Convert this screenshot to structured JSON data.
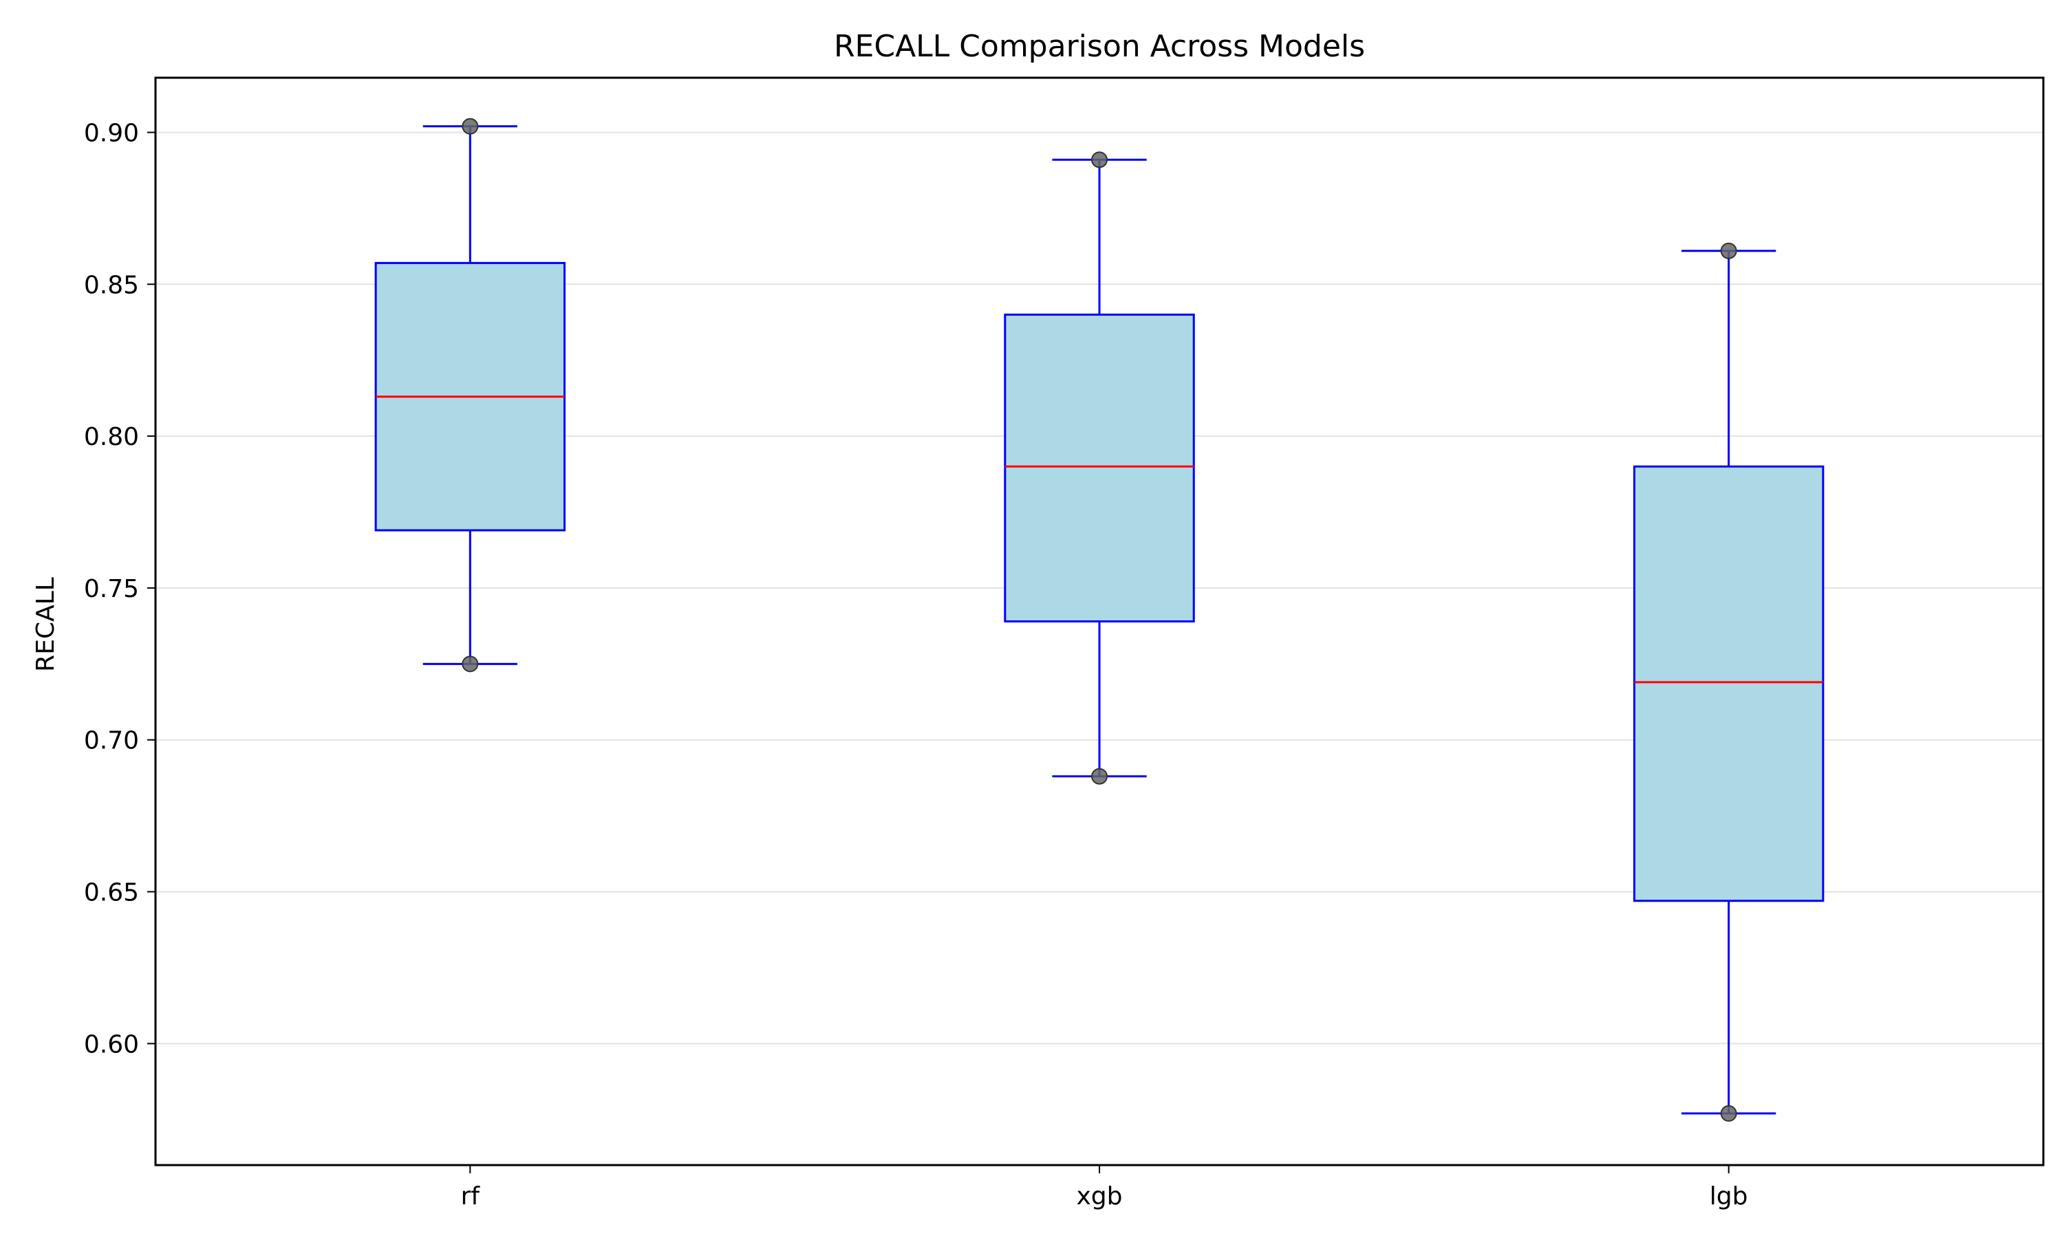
{
  "chart_data": {
    "type": "box",
    "title": "RECALL Comparison Across Models",
    "xlabel": "",
    "ylabel": "RECALL",
    "ylim": [
      0.56,
      0.918
    ],
    "yticks": [
      "0.60",
      "0.65",
      "0.70",
      "0.75",
      "0.80",
      "0.85",
      "0.90"
    ],
    "grid": "horizontal",
    "categories": [
      "rf",
      "xgb",
      "lgb"
    ],
    "boxes": [
      {
        "name": "rf",
        "whisker_low": 0.725,
        "q1": 0.769,
        "median": 0.813,
        "q3": 0.857,
        "whisker_high": 0.902
      },
      {
        "name": "xgb",
        "whisker_low": 0.688,
        "q1": 0.739,
        "median": 0.79,
        "q3": 0.84,
        "whisker_high": 0.891
      },
      {
        "name": "lgb",
        "whisker_low": 0.577,
        "q1": 0.647,
        "median": 0.719,
        "q3": 0.79,
        "whisker_high": 0.861
      }
    ],
    "colors": {
      "box_fill": "#add8e6",
      "box_edge": "#0000ff",
      "median": "#ff0000",
      "whisker": "#0000ff",
      "point": "#666666",
      "grid": "#e2e2e2"
    }
  }
}
